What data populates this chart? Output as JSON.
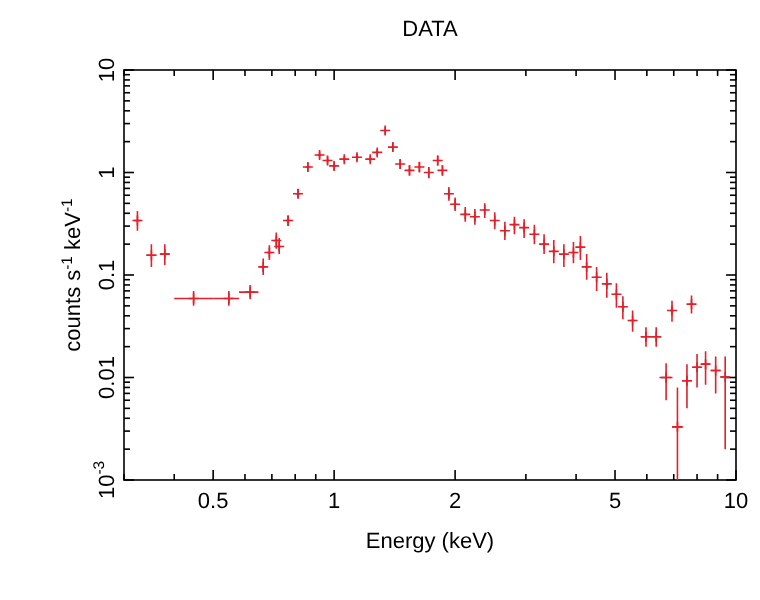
{
  "chart_data": {
    "type": "scatter",
    "title": "DATA",
    "xlabel": "Energy (keV)",
    "ylabel": "counts s$^{-1}$ keV$^{-1}$",
    "log": "xy",
    "marker": "cross",
    "xlim": [
      0.3,
      10
    ],
    "xticks": [
      {
        "value": 0.3,
        "label": null
      },
      {
        "value": 0.4,
        "label": null
      },
      0.5,
      {
        "value": 0.6,
        "label": null
      },
      {
        "value": 0.7,
        "label": null
      },
      {
        "value": 0.8,
        "label": null
      },
      {
        "value": 0.9,
        "label": null
      },
      1,
      2,
      {
        "value": 3,
        "label": null
      },
      {
        "value": 4,
        "label": null
      },
      5,
      {
        "value": 6,
        "label": null
      },
      {
        "value": 7,
        "label": null
      },
      {
        "value": 8,
        "label": null
      },
      {
        "value": 9,
        "label": null
      },
      10
    ],
    "ylim": [
      0.001,
      10
    ],
    "yticks": [
      {
        "value": 0.001,
        "label": "10$^{-3}$"
      },
      {
        "value": 0.002,
        "label": null
      },
      {
        "value": 0.003,
        "label": null
      },
      {
        "value": 0.004,
        "label": null
      },
      {
        "value": 0.005,
        "label": null
      },
      {
        "value": 0.006,
        "label": null
      },
      {
        "value": 0.007,
        "label": null
      },
      {
        "value": 0.008,
        "label": null
      },
      {
        "value": 0.009,
        "label": null
      },
      0.01,
      {
        "value": 0.02,
        "label": null
      },
      {
        "value": 0.03,
        "label": null
      },
      {
        "value": 0.04,
        "label": null
      },
      {
        "value": 0.05,
        "label": null
      },
      {
        "value": 0.06,
        "label": null
      },
      {
        "value": 0.07,
        "label": null
      },
      {
        "value": 0.08,
        "label": null
      },
      {
        "value": 0.09,
        "label": null
      },
      0.1,
      {
        "value": 0.2,
        "label": null
      },
      {
        "value": 0.3,
        "label": null
      },
      {
        "value": 0.4,
        "label": null
      },
      {
        "value": 0.5,
        "label": null
      },
      {
        "value": 0.6,
        "label": null
      },
      {
        "value": 0.7,
        "label": null
      },
      {
        "value": 0.8,
        "label": null
      },
      {
        "value": 0.9,
        "label": null
      },
      1,
      {
        "value": 2,
        "label": null
      },
      {
        "value": 3,
        "label": null
      },
      {
        "value": 4,
        "label": null
      },
      {
        "value": 5,
        "label": null
      },
      {
        "value": 6,
        "label": null
      },
      {
        "value": 7,
        "label": null
      },
      {
        "value": 8,
        "label": null
      },
      {
        "value": 9,
        "label": null
      },
      10
    ],
    "series": [
      {
        "color": "#e0202a",
        "x": [
          0.324,
          0.351,
          0.379,
          0.447,
          0.547,
          0.618,
          0.666,
          0.69,
          0.718,
          0.73,
          0.768,
          0.813,
          0.86,
          0.92,
          0.963,
          1.0,
          1.06,
          1.14,
          1.23,
          1.28,
          1.34,
          1.4,
          1.46,
          1.54,
          1.63,
          1.72,
          1.81,
          1.86,
          1.93,
          2.0,
          2.12,
          2.24,
          2.37,
          2.51,
          2.66,
          2.81,
          2.97,
          3.15,
          3.33,
          3.52,
          3.73,
          3.94,
          4.1,
          4.25,
          4.5,
          4.77,
          5.04,
          5.23,
          5.53,
          5.97,
          6.33,
          6.7,
          6.93,
          7.15,
          7.55,
          7.75,
          8.0,
          8.4,
          8.9,
          9.4
        ],
        "values": [
          0.34,
          0.156,
          0.16,
          0.059,
          0.059,
          0.068,
          0.12,
          0.166,
          0.217,
          0.19,
          0.34,
          0.62,
          1.13,
          1.48,
          1.31,
          1.16,
          1.35,
          1.41,
          1.35,
          1.57,
          2.57,
          1.77,
          1.21,
          1.05,
          1.13,
          1.0,
          1.31,
          1.05,
          0.62,
          0.49,
          0.39,
          0.37,
          0.43,
          0.34,
          0.27,
          0.31,
          0.29,
          0.25,
          0.2,
          0.17,
          0.16,
          0.166,
          0.187,
          0.12,
          0.095,
          0.082,
          0.065,
          0.049,
          0.036,
          0.025,
          0.025,
          0.01,
          0.045,
          0.0033,
          0.0093,
          0.052,
          0.0126,
          0.0135,
          0.0117,
          0.0101
        ],
        "errors": [
          [
            0.27,
            0.42
          ],
          [
            0.12,
            0.2
          ],
          [
            0.125,
            0.2
          ],
          [
            0.05,
            0.07
          ],
          [
            0.05,
            0.07
          ],
          [
            0.058,
            0.08
          ],
          [
            0.1,
            0.145
          ],
          [
            0.14,
            0.195
          ],
          [
            0.18,
            0.26
          ],
          [
            0.16,
            0.23
          ],
          [
            0.3,
            0.38
          ],
          [
            0.56,
            0.69
          ],
          [
            1.03,
            1.24
          ],
          [
            1.37,
            1.6
          ],
          [
            1.2,
            1.43
          ],
          [
            1.06,
            1.27
          ],
          [
            1.25,
            1.46
          ],
          [
            1.31,
            1.52
          ],
          [
            1.25,
            1.46
          ],
          [
            1.46,
            1.69
          ],
          [
            2.35,
            2.8
          ],
          [
            1.6,
            1.95
          ],
          [
            1.08,
            1.35
          ],
          [
            0.93,
            1.18
          ],
          [
            1.0,
            1.27
          ],
          [
            0.88,
            1.13
          ],
          [
            1.17,
            1.46
          ],
          [
            0.93,
            1.18
          ],
          [
            0.53,
            0.72
          ],
          [
            0.42,
            0.57
          ],
          [
            0.33,
            0.46
          ],
          [
            0.31,
            0.44
          ],
          [
            0.36,
            0.5
          ],
          [
            0.28,
            0.41
          ],
          [
            0.22,
            0.33
          ],
          [
            0.25,
            0.37
          ],
          [
            0.23,
            0.35
          ],
          [
            0.2,
            0.31
          ],
          [
            0.16,
            0.25
          ],
          [
            0.13,
            0.22
          ],
          [
            0.12,
            0.2
          ],
          [
            0.13,
            0.21
          ],
          [
            0.14,
            0.24
          ],
          [
            0.09,
            0.16
          ],
          [
            0.07,
            0.12
          ],
          [
            0.06,
            0.105
          ],
          [
            0.048,
            0.083
          ],
          [
            0.037,
            0.062
          ],
          [
            0.028,
            0.045
          ],
          [
            0.02,
            0.031
          ],
          [
            0.02,
            0.031
          ],
          [
            0.006,
            0.0138
          ],
          [
            0.035,
            0.056
          ],
          [
            0.001,
            0.008
          ],
          [
            0.005,
            0.0135
          ],
          [
            0.042,
            0.063
          ],
          [
            0.008,
            0.017
          ],
          [
            0.0085,
            0.018
          ],
          [
            0.007,
            0.016
          ],
          [
            0.002,
            0.016
          ]
        ],
        "xerrors": [
          0.006,
          0.01,
          0.01,
          [
            0.4,
            0.5
          ],
          [
            0.5,
            0.58
          ],
          [
            0.58,
            0.648
          ],
          0.01,
          0.01,
          0.01,
          0.01,
          0.01,
          0.01,
          0.01,
          0.01,
          0.01,
          0.01,
          0.01,
          0.01,
          0.01,
          0.01,
          0.01,
          0.01,
          0.01,
          0.01,
          0.01,
          0.01,
          0.01,
          0.01,
          0.02,
          0.02,
          0.02,
          0.02,
          0.02,
          0.02,
          0.02,
          0.03,
          0.03,
          0.03,
          0.03,
          0.03,
          0.03,
          0.04,
          0.04,
          0.04,
          0.05,
          0.05,
          0.06,
          0.06,
          0.08,
          0.18,
          0.18,
          0.25,
          0.08,
          0.22,
          0.2,
          0.08,
          0.2,
          0.2,
          0.25,
          0.25
        ]
      }
    ]
  }
}
